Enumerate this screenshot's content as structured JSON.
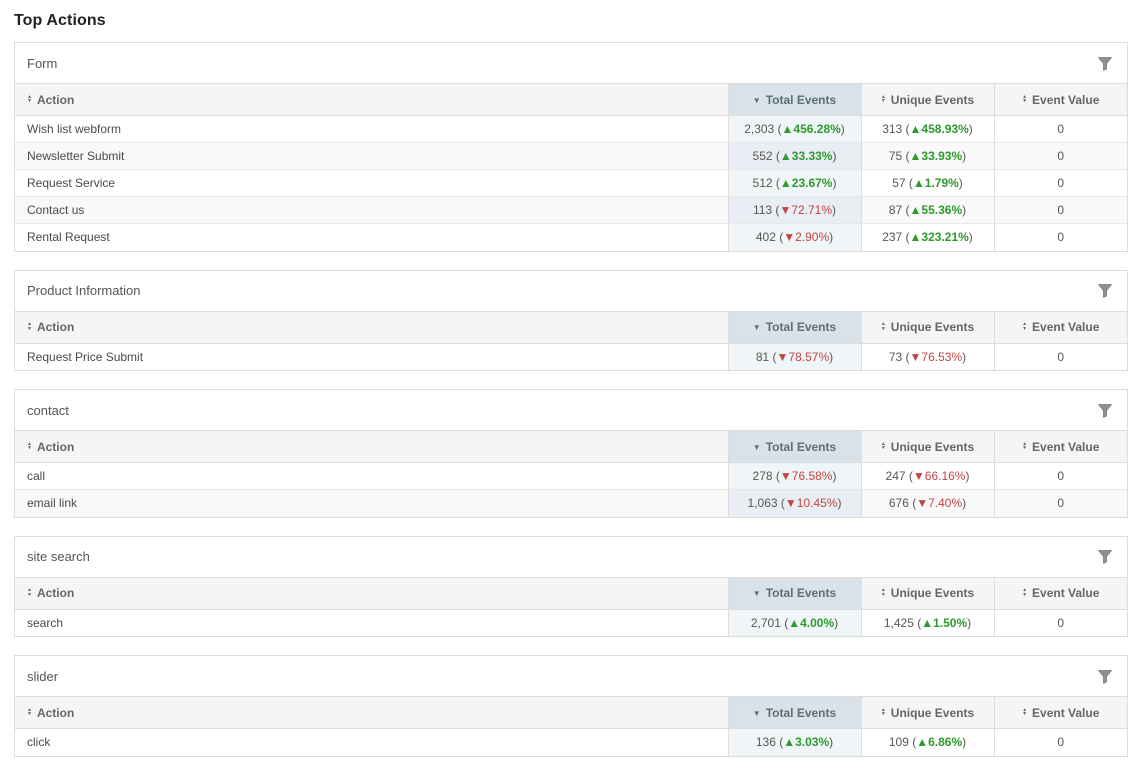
{
  "page": {
    "title": "Top Actions"
  },
  "table": {
    "columns": {
      "action": "Action",
      "total": "Total Events",
      "unique": "Unique Events",
      "value": "Event Value"
    },
    "sort_state": {
      "total": "desc",
      "action": "both",
      "unique": "both",
      "value": "both"
    }
  },
  "icons": {
    "filter": "funnel-icon",
    "sort_unsorted": "sort-both-icon",
    "sort_desc": "sort-desc-icon",
    "up_marker": "▲",
    "down_marker": "▼"
  },
  "colors": {
    "up_green": "#2c9a2c",
    "down_red": "#c14644",
    "total_header_bg": "#d9e2e8",
    "total_column_bg": "#f0f5f8",
    "header_bg": "#f5f5f5",
    "panel_border": "#dddddd"
  },
  "sections": [
    {
      "title": "Form",
      "rows": [
        {
          "action": "Wish list webform",
          "total": {
            "v": "2,303",
            "pct": "456.28%",
            "dir": "up"
          },
          "unique": {
            "v": "313",
            "pct": "458.93%",
            "dir": "up"
          },
          "value": "0"
        },
        {
          "action": "Newsletter Submit",
          "total": {
            "v": "552",
            "pct": "33.33%",
            "dir": "up"
          },
          "unique": {
            "v": "75",
            "pct": "33.93%",
            "dir": "up"
          },
          "value": "0"
        },
        {
          "action": "Request Service",
          "total": {
            "v": "512",
            "pct": "23.67%",
            "dir": "up"
          },
          "unique": {
            "v": "57",
            "pct": "1.79%",
            "dir": "up"
          },
          "value": "0"
        },
        {
          "action": "Contact us",
          "total": {
            "v": "113",
            "pct": "72.71%",
            "dir": "down"
          },
          "unique": {
            "v": "87",
            "pct": "55.36%",
            "dir": "up"
          },
          "value": "0"
        },
        {
          "action": "Rental Request",
          "total": {
            "v": "402",
            "pct": "2.90%",
            "dir": "down"
          },
          "unique": {
            "v": "237",
            "pct": "323.21%",
            "dir": "up"
          },
          "value": "0"
        }
      ]
    },
    {
      "title": "Product Information",
      "rows": [
        {
          "action": "Request Price Submit",
          "total": {
            "v": "81",
            "pct": "78.57%",
            "dir": "down"
          },
          "unique": {
            "v": "73",
            "pct": "76.53%",
            "dir": "down"
          },
          "value": "0"
        }
      ]
    },
    {
      "title": "contact",
      "rows": [
        {
          "action": "call",
          "total": {
            "v": "278",
            "pct": "76.58%",
            "dir": "down"
          },
          "unique": {
            "v": "247",
            "pct": "66.16%",
            "dir": "down"
          },
          "value": "0"
        },
        {
          "action": "email link",
          "total": {
            "v": "1,063",
            "pct": "10.45%",
            "dir": "down"
          },
          "unique": {
            "v": "676",
            "pct": "7.40%",
            "dir": "down"
          },
          "value": "0"
        }
      ]
    },
    {
      "title": "site search",
      "rows": [
        {
          "action": "search",
          "total": {
            "v": "2,701",
            "pct": "4.00%",
            "dir": "up"
          },
          "unique": {
            "v": "1,425",
            "pct": "1.50%",
            "dir": "up"
          },
          "value": "0"
        }
      ]
    },
    {
      "title": "slider",
      "rows": [
        {
          "action": "click",
          "total": {
            "v": "136",
            "pct": "3.03%",
            "dir": "up"
          },
          "unique": {
            "v": "109",
            "pct": "6.86%",
            "dir": "up"
          },
          "value": "0"
        }
      ]
    }
  ]
}
